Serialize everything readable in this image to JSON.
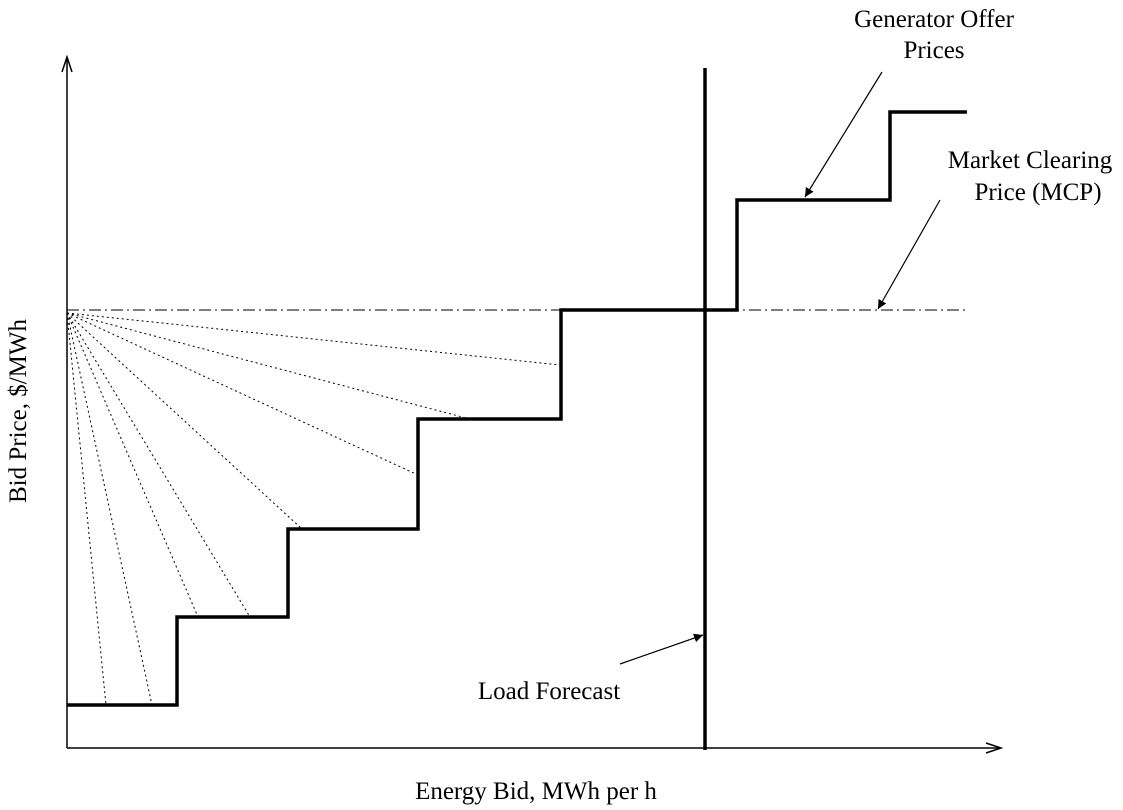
{
  "labels": {
    "xlabel": "Energy Bid, MWh per h",
    "ylabel": "Bid Price, $/MWh",
    "generator_line1": "Generator Offer",
    "generator_line2": "Prices",
    "mcp_line1": "Market Clearing",
    "mcp_line2": "Price (MCP)",
    "load": "Load Forecast"
  },
  "colors": {
    "ink": "#000000",
    "background": "#ffffff"
  }
}
